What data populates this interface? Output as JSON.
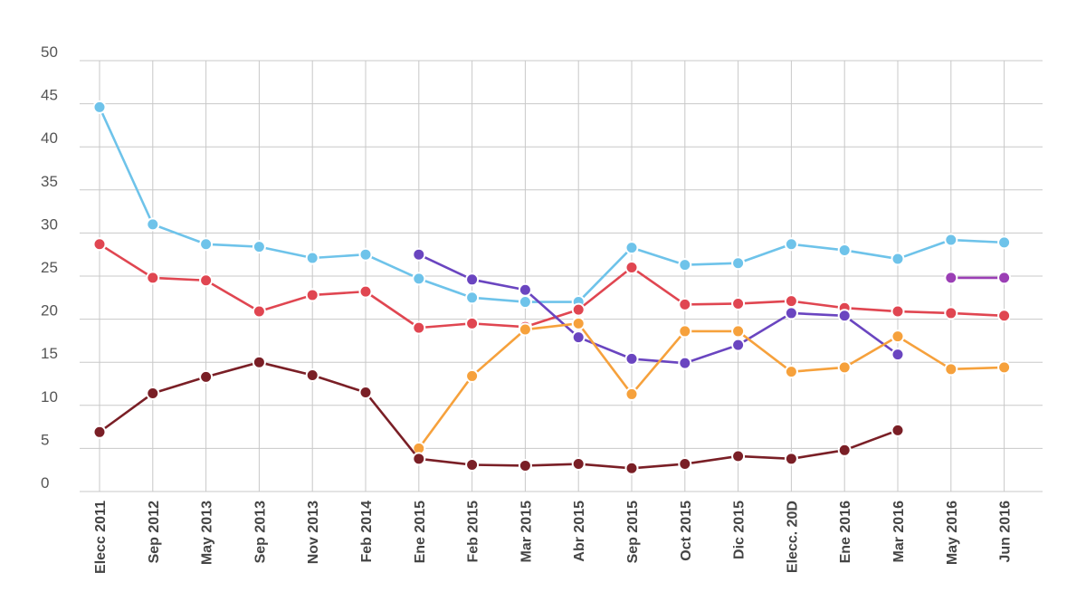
{
  "chart_data": {
    "type": "line",
    "title": "",
    "xlabel": "",
    "ylabel": "",
    "ylim": [
      0,
      50
    ],
    "yticks": [
      0,
      5,
      10,
      15,
      20,
      25,
      30,
      35,
      40,
      45,
      50
    ],
    "grid": true,
    "legend": "none",
    "categories": [
      "Elecc 2011",
      "Sep 2012",
      "May 2013",
      "Sep 2013",
      "Nov 2013",
      "Feb 2014",
      "Ene 2015",
      "Feb 2015",
      "Mar 2015",
      "Abr 2015",
      "Sep 2015",
      "Oct 2015",
      "Dic 2015",
      "Elecc. 20D",
      "Ene 2016",
      "Mar 2016",
      "May 2016",
      "Jun 2016"
    ],
    "series": [
      {
        "name": "light-blue",
        "color": "#6ec3ea",
        "values": [
          44.6,
          31.0,
          28.7,
          28.4,
          27.1,
          27.5,
          24.7,
          22.5,
          22.0,
          22.0,
          28.3,
          26.3,
          26.5,
          28.7,
          28.0,
          27.0,
          29.2,
          28.9
        ]
      },
      {
        "name": "red",
        "color": "#e04651",
        "values": [
          28.7,
          24.8,
          24.5,
          20.9,
          22.8,
          23.2,
          19.0,
          19.5,
          19.1,
          21.1,
          26.0,
          21.7,
          21.8,
          22.1,
          21.3,
          20.9,
          20.7,
          20.4
        ]
      },
      {
        "name": "purple",
        "color": "#6a45c0",
        "values": [
          null,
          null,
          null,
          null,
          null,
          null,
          27.5,
          24.6,
          23.4,
          17.9,
          15.4,
          14.9,
          17.0,
          20.7,
          20.4,
          15.9,
          null,
          null
        ]
      },
      {
        "name": "magenta",
        "color": "#9b3fb5",
        "values": [
          null,
          null,
          null,
          null,
          null,
          null,
          null,
          null,
          null,
          null,
          null,
          null,
          null,
          null,
          null,
          null,
          24.8,
          24.8
        ]
      },
      {
        "name": "orange",
        "color": "#f6a13c",
        "values": [
          null,
          null,
          null,
          null,
          null,
          null,
          5.0,
          13.4,
          18.8,
          19.5,
          11.3,
          18.6,
          18.6,
          13.9,
          14.4,
          18.0,
          14.2,
          14.4
        ]
      },
      {
        "name": "dark-red",
        "color": "#7a1f26",
        "values": [
          6.9,
          11.4,
          13.3,
          15.0,
          13.5,
          11.5,
          3.8,
          3.1,
          3.0,
          3.2,
          2.7,
          3.2,
          4.1,
          3.8,
          4.8,
          7.1,
          null,
          null
        ]
      }
    ]
  }
}
